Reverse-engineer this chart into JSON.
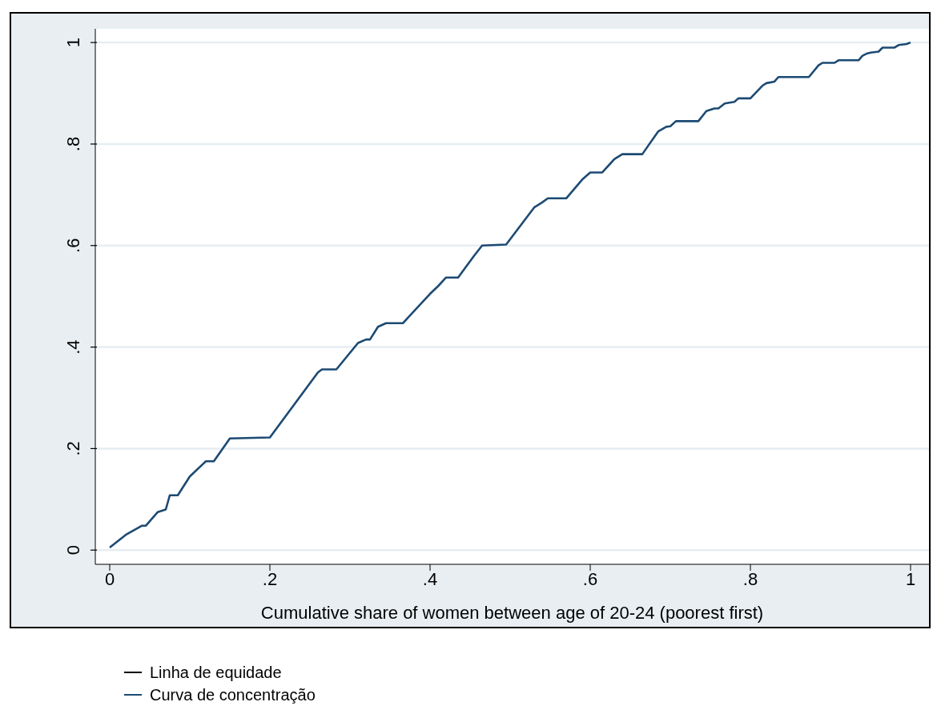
{
  "chart_data": {
    "type": "line",
    "xlabel": "Cumulative share of women between age of 20-24 (poorest first)",
    "xlim": [
      -0.018,
      1.023
    ],
    "ylim": [
      -0.028,
      1.027
    ],
    "xticks": [
      0,
      {
        "value": 0.2,
        "label": ".2"
      },
      {
        "value": 0.4,
        "label": ".4"
      },
      {
        "value": 0.6,
        "label": ".6"
      },
      {
        "value": 0.8,
        "label": ".8"
      },
      1
    ],
    "yticks": [
      0,
      {
        "value": 0.2,
        "label": ".2"
      },
      {
        "value": 0.4,
        "label": ".4"
      },
      {
        "value": 0.6,
        "label": ".6"
      },
      {
        "value": 0.8,
        "label": ".8"
      },
      1
    ],
    "grid": "y",
    "legend": "bottom",
    "marker": "none",
    "line_style": "solid",
    "series": [
      {
        "name": "Linha de equidade",
        "color": "#000000"
      },
      {
        "name": "Curva de concentração",
        "color": "#1c4a73",
        "x": [
          0,
          0.02,
          0.04,
          0.045,
          0.06,
          0.07,
          0.075,
          0.085,
          0.1,
          0.12,
          0.13,
          0.15,
          0.2,
          0.26,
          0.265,
          0.283,
          0.31,
          0.32,
          0.325,
          0.335,
          0.345,
          0.366,
          0.4,
          0.41,
          0.42,
          0.435,
          0.455,
          0.465,
          0.495,
          0.53,
          0.54,
          0.547,
          0.57,
          0.59,
          0.6,
          0.615,
          0.63,
          0.64,
          0.665,
          0.685,
          0.695,
          0.7,
          0.707,
          0.735,
          0.745,
          0.755,
          0.76,
          0.768,
          0.78,
          0.785,
          0.8,
          0.815,
          0.82,
          0.83,
          0.835,
          0.873,
          0.885,
          0.89,
          0.905,
          0.91,
          0.935,
          0.94,
          0.945,
          0.95,
          0.96,
          0.965,
          0.98,
          0.985,
          0.995,
          1
        ],
        "values": [
          0.005,
          0.03,
          0.048,
          0.048,
          0.075,
          0.08,
          0.108,
          0.108,
          0.145,
          0.175,
          0.175,
          0.22,
          0.222,
          0.35,
          0.356,
          0.356,
          0.408,
          0.415,
          0.415,
          0.44,
          0.447,
          0.447,
          0.505,
          0.52,
          0.537,
          0.537,
          0.58,
          0.6,
          0.602,
          0.675,
          0.685,
          0.693,
          0.693,
          0.73,
          0.744,
          0.744,
          0.77,
          0.78,
          0.78,
          0.825,
          0.834,
          0.835,
          0.845,
          0.845,
          0.865,
          0.87,
          0.87,
          0.88,
          0.883,
          0.89,
          0.89,
          0.915,
          0.92,
          0.923,
          0.932,
          0.932,
          0.955,
          0.96,
          0.96,
          0.965,
          0.965,
          0.974,
          0.978,
          0.98,
          0.982,
          0.99,
          0.99,
          0.995,
          0.997,
          1
        ]
      }
    ]
  }
}
